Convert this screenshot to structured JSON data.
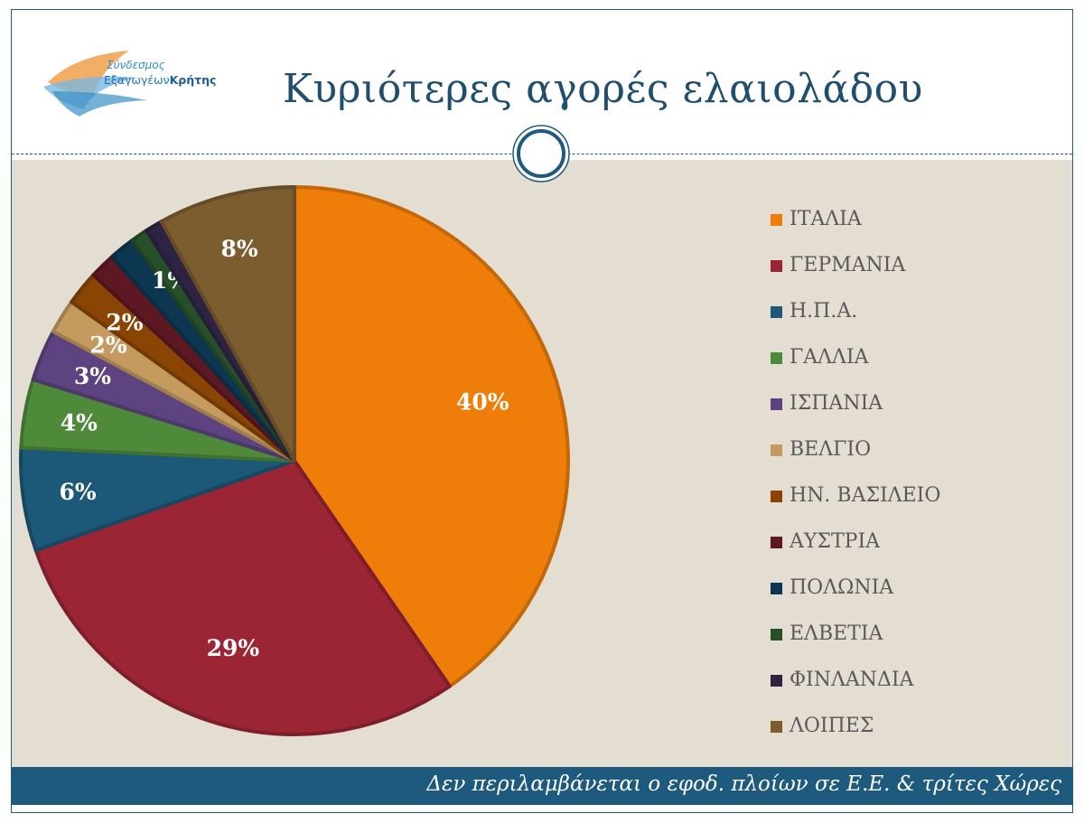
{
  "logo": {
    "line1": "Σύνδεσμος",
    "line2_a": "Εξαγωγέων",
    "line2_b": "Κρήτης"
  },
  "title": "Κυριότερες αγορές ελαιολάδου",
  "footer_note": "Δεν περιλαμβάνεται ο εφοδ. πλοίων σε Ε.Ε. & τρίτες Χώρες",
  "chart_data": {
    "type": "pie",
    "title": "Κυριότερες αγορές ελαιολάδου",
    "legend_position": "right",
    "categories": [
      "ΙΤΑΛΙΑ",
      "ΓΕΡΜΑΝΙΑ",
      "Η.Π.Α.",
      "ΓΑΛΛΙΑ",
      "ΙΣΠΑΝΙΑ",
      "ΒΕΛΓΙΟ",
      "ΗΝ. ΒΑΣΙΛΕΙΟ",
      "ΑΥΣΤΡΙΑ",
      "ΠΟΛΩΝΙΑ",
      "ΕΛΒΕΤΙΑ",
      "ΦΙΝΛΑΝΔΙΑ",
      "ΛΟΙΠΕΣ"
    ],
    "values": [
      40,
      29,
      6,
      4,
      3,
      2,
      2,
      1.5,
      1.5,
      1,
      1,
      8
    ],
    "data_labels": [
      "40%",
      "29%",
      "6%",
      "4%",
      "3%",
      "2%",
      "2%",
      "",
      "",
      "1%",
      "",
      "8%"
    ],
    "colors": [
      "#ee7d0a",
      "#9b2534",
      "#1c5878",
      "#4f8a3a",
      "#5d4480",
      "#c49a5e",
      "#8a4505",
      "#5e1823",
      "#0d3750",
      "#27502a",
      "#2e2343",
      "#7c5d30"
    ]
  }
}
